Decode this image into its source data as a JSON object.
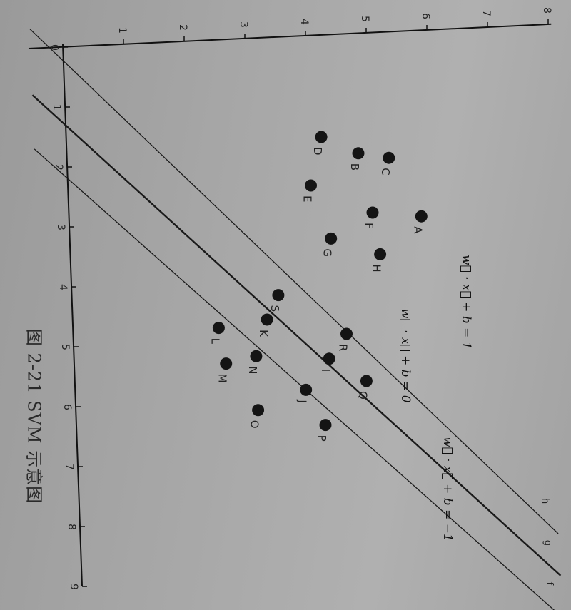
{
  "caption": "图 2-21   SVM 示意图",
  "chart_data": {
    "type": "scatter",
    "title": "",
    "xlabel": "",
    "ylabel": "",
    "xlim": [
      0,
      9
    ],
    "ylim": [
      0,
      8
    ],
    "x_ticks": [
      "0",
      "1",
      "2",
      "3",
      "4",
      "5",
      "6",
      "7",
      "8",
      "9"
    ],
    "y_ticks": [
      "1",
      "2",
      "3",
      "4",
      "5",
      "6",
      "7",
      "8"
    ],
    "series": [
      {
        "points": [
          {
            "label": "A",
            "x": 3.1,
            "y": 5.8
          },
          {
            "label": "B",
            "x": 2.0,
            "y": 4.8
          },
          {
            "label": "C",
            "x": 2.1,
            "y": 5.3
          },
          {
            "label": "D",
            "x": 1.7,
            "y": 4.2
          },
          {
            "label": "E",
            "x": 2.5,
            "y": 4.0
          },
          {
            "label": "F",
            "x": 3.0,
            "y": 5.0
          },
          {
            "label": "G",
            "x": 3.4,
            "y": 4.3
          },
          {
            "label": "H",
            "x": 3.7,
            "y": 5.1
          },
          {
            "label": "I",
            "x": 5.4,
            "y": 4.2
          },
          {
            "label": "J",
            "x": 5.9,
            "y": 3.8
          },
          {
            "label": "K",
            "x": 4.7,
            "y": 3.2
          },
          {
            "label": "L",
            "x": 4.8,
            "y": 2.4
          },
          {
            "label": "M",
            "x": 5.4,
            "y": 2.5
          },
          {
            "label": "N",
            "x": 5.3,
            "y": 3.0
          },
          {
            "label": "O",
            "x": 6.2,
            "y": 3.0
          },
          {
            "label": "P",
            "x": 6.5,
            "y": 4.1
          },
          {
            "label": "Q",
            "x": 5.8,
            "y": 4.8
          },
          {
            "label": "R",
            "x": 5.0,
            "y": 4.5
          },
          {
            "label": "S",
            "x": 4.3,
            "y": 3.4
          }
        ]
      }
    ],
    "lines": [
      {
        "name": "h",
        "label": "w⃗ · x⃗ + b = 1",
        "x0": -0.3,
        "x1": 8.0
      },
      {
        "name": "g",
        "label": "w⃗ · x⃗ + b = 0",
        "x0": 0.8,
        "x1": 8.7
      },
      {
        "name": "f",
        "label": "w⃗ · x⃗ + b = −1",
        "x0": 1.7,
        "x1": 9.4
      }
    ],
    "grid": false
  }
}
